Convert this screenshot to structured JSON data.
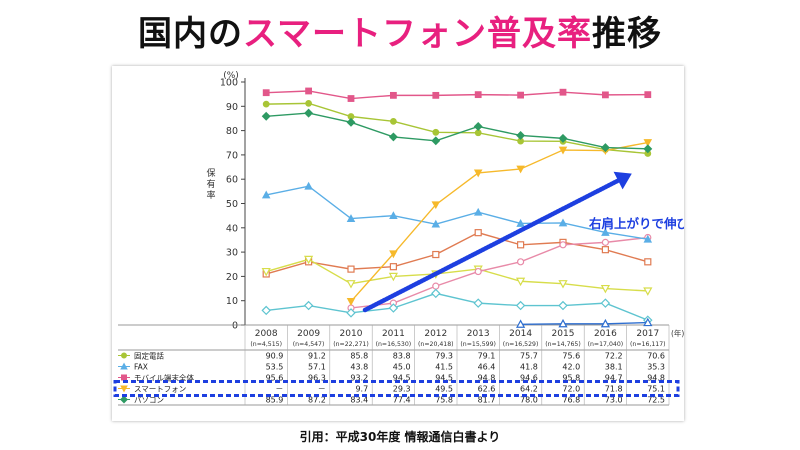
{
  "title": {
    "part1": "国内の",
    "part2": "スマートフォン普及率",
    "part3": "推移"
  },
  "caption": "引用：平成30年度 情報通信白書より",
  "annotation": {
    "text": "右肩上がりで伸びている",
    "color": "#1d3fe0"
  },
  "chart_data": {
    "type": "line",
    "ylabel": "保有率",
    "y_unit": "(%)",
    "x_unit": "(年)",
    "ylim": [
      0,
      100
    ],
    "yticks": [
      0,
      10,
      20,
      30,
      40,
      50,
      60,
      70,
      80,
      90,
      100
    ],
    "grid": false,
    "x": [
      "2008",
      "2009",
      "2010",
      "2011",
      "2012",
      "2013",
      "2014",
      "2015",
      "2016",
      "2017"
    ],
    "x_sub": [
      "(n=4,515)",
      "(n=4,547)",
      "(n=22,271)",
      "(n=16,530)",
      "(n=20,418)",
      "(n=15,599)",
      "(n=16,529)",
      "(n=14,765)",
      "(n=17,040)",
      "(n=16,117)"
    ],
    "series": [
      {
        "name": "固定電話",
        "color": "#a8c536",
        "marker": "circle",
        "values": [
          90.9,
          91.2,
          85.8,
          83.8,
          79.3,
          79.1,
          75.7,
          75.6,
          72.2,
          70.6
        ],
        "labels": [
          "90.9",
          "91.2",
          "85.8",
          "83.8",
          "79.3",
          "79.1",
          "75.7",
          "75.6",
          "72.2",
          "70.6"
        ]
      },
      {
        "name": "FAX",
        "color": "#5aaee6",
        "marker": "triangle",
        "values": [
          53.5,
          57.1,
          43.8,
          45.0,
          41.5,
          46.4,
          41.8,
          42.0,
          38.1,
          35.3
        ],
        "labels": [
          "53.5",
          "57.1",
          "43.8",
          "45.0",
          "41.5",
          "46.4",
          "41.8",
          "42.0",
          "38.1",
          "35.3"
        ]
      },
      {
        "name": "モバイル端末全体",
        "color": "#e2578a",
        "marker": "square",
        "values": [
          95.6,
          96.3,
          93.2,
          94.5,
          94.5,
          94.8,
          94.6,
          95.8,
          94.7,
          94.8
        ],
        "labels": [
          "95.6",
          "96.3",
          "93.2",
          "94.5",
          "94.5",
          "94.8",
          "94.6",
          "95.8",
          "94.7",
          "94.8"
        ]
      },
      {
        "name": "スマートフォン",
        "color": "#f6b92b",
        "marker": "triangle-down",
        "values": [
          null,
          null,
          9.7,
          29.3,
          49.5,
          62.6,
          64.2,
          72.0,
          71.8,
          75.1
        ],
        "labels": [
          "－",
          "－",
          "9.7",
          "29.3",
          "49.5",
          "62.6",
          "64.2",
          "72.0",
          "71.8",
          "75.1"
        ]
      },
      {
        "name": "パソコン",
        "color": "#2e9a63",
        "marker": "diamond",
        "values": [
          85.9,
          87.2,
          83.4,
          77.4,
          75.8,
          81.7,
          78.0,
          76.8,
          73.0,
          72.5
        ],
        "labels": [
          "85.9",
          "87.2",
          "83.4",
          "77.4",
          "75.8",
          "81.7",
          "78.0",
          "76.8",
          "73.0",
          "72.5"
        ]
      }
    ],
    "extra_series": [
      {
        "color": "#e07b52",
        "marker": "square-open",
        "values": [
          21.0,
          26.0,
          23.0,
          24.0,
          29.0,
          38.0,
          33.0,
          34.0,
          31.0,
          26.0
        ]
      },
      {
        "color": "#d7dd4a",
        "marker": "triangle-down-open",
        "values": [
          22.0,
          27.0,
          17.0,
          20.0,
          21.0,
          23.0,
          18.0,
          17.0,
          15.0,
          14.0
        ]
      },
      {
        "color": "#e88aa8",
        "marker": "circle-open",
        "values": [
          null,
          null,
          7.0,
          9.0,
          16.0,
          22.0,
          26.0,
          33.0,
          34.0,
          36.0
        ]
      },
      {
        "color": "#5ec4d0",
        "marker": "diamond-open",
        "values": [
          6.0,
          8.0,
          5.0,
          7.0,
          13.0,
          9.0,
          8.0,
          8.0,
          9.0,
          2.0
        ]
      },
      {
        "color": "#2f6fd0",
        "marker": "triangle-open",
        "values": [
          null,
          null,
          null,
          null,
          null,
          null,
          0.3,
          0.5,
          0.5,
          1.0
        ]
      }
    ],
    "highlight_row": "スマートフォン"
  }
}
